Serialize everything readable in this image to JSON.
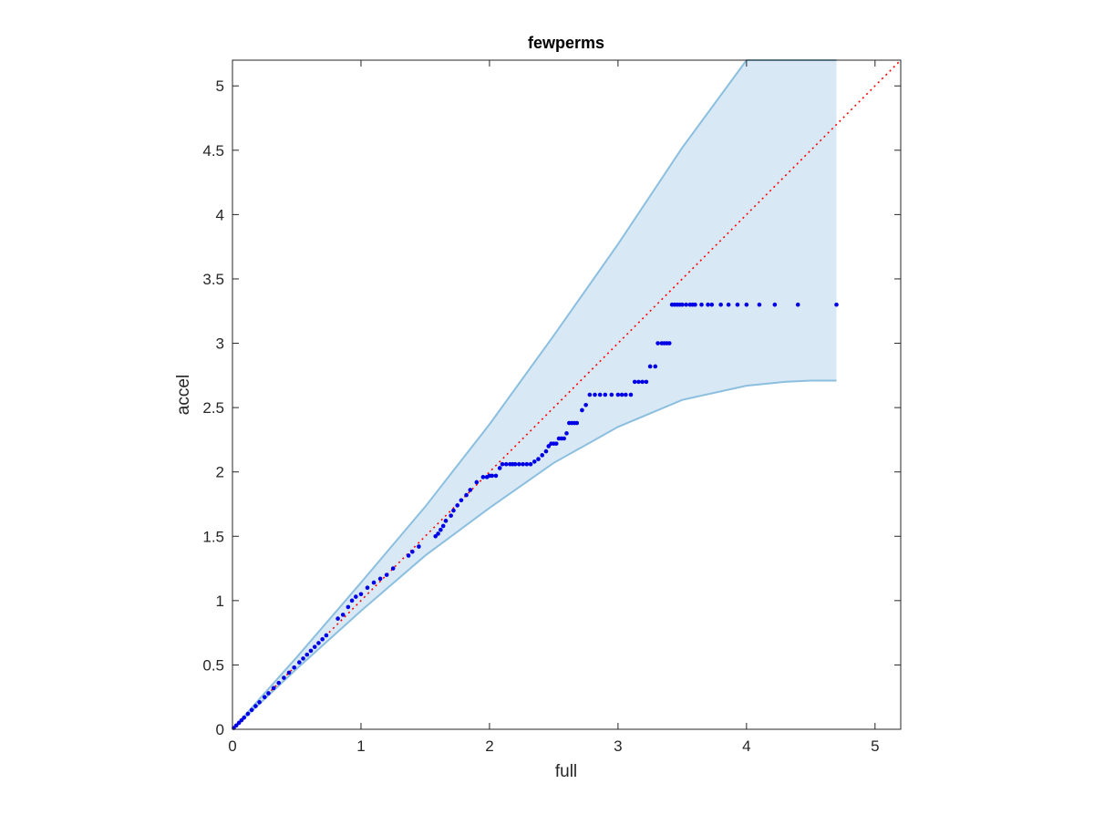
{
  "chart_data": {
    "type": "scatter",
    "title": "fewperms",
    "xlabel": "full",
    "ylabel": "accel",
    "xlim": [
      0,
      5.2
    ],
    "ylim": [
      0,
      5.2
    ],
    "xticks": [
      "0",
      "1",
      "2",
      "3",
      "4",
      "5"
    ],
    "yticks": [
      "0",
      "0.5",
      "1",
      "1.5",
      "2",
      "2.5",
      "3",
      "3.5",
      "4",
      "4.5",
      "5"
    ],
    "grid": false,
    "colors": {
      "points": "#0000e6",
      "reference_line": "#ff0000",
      "band_fill": "#d8e8f4",
      "band_edge": "#8cbfdf",
      "axes": "#262626"
    },
    "confidence_band": {
      "x": [
        0,
        0.5,
        1.0,
        1.5,
        2.0,
        2.5,
        3.0,
        3.5,
        4.0,
        4.3,
        4.5,
        4.7
      ],
      "upper": [
        0,
        0.56,
        1.14,
        1.73,
        2.37,
        3.06,
        3.77,
        4.52,
        5.2,
        5.2,
        5.2,
        5.2
      ],
      "lower": [
        0,
        0.47,
        0.92,
        1.35,
        1.72,
        2.07,
        2.35,
        2.56,
        2.67,
        2.7,
        2.71,
        2.71
      ]
    },
    "reference_line": {
      "style": "dotted",
      "x": [
        0,
        5.2
      ],
      "y": [
        0,
        5.2
      ]
    },
    "points": {
      "x": [
        0.01,
        0.03,
        0.05,
        0.07,
        0.09,
        0.12,
        0.15,
        0.18,
        0.21,
        0.25,
        0.28,
        0.32,
        0.36,
        0.4,
        0.44,
        0.48,
        0.52,
        0.55,
        0.58,
        0.61,
        0.64,
        0.67,
        0.7,
        0.73,
        0.82,
        0.86,
        0.9,
        0.93,
        0.96,
        1.0,
        1.05,
        1.1,
        1.15,
        1.2,
        1.25,
        1.37,
        1.4,
        1.45,
        1.58,
        1.6,
        1.62,
        1.64,
        1.66,
        1.7,
        1.72,
        1.75,
        1.78,
        1.82,
        1.85,
        1.9,
        1.95,
        1.98,
        2.0,
        2.02,
        2.05,
        2.08,
        2.1,
        2.13,
        2.16,
        2.18,
        2.2,
        2.23,
        2.26,
        2.29,
        2.32,
        2.35,
        2.38,
        2.41,
        2.44,
        2.46,
        2.48,
        2.5,
        2.52,
        2.54,
        2.56,
        2.58,
        2.6,
        2.62,
        2.64,
        2.66,
        2.68,
        2.72,
        2.75,
        2.78,
        2.82,
        2.86,
        2.9,
        2.95,
        3.0,
        3.03,
        3.06,
        3.1,
        3.13,
        3.16,
        3.19,
        3.22,
        3.25,
        3.29,
        3.31,
        3.34,
        3.36,
        3.38,
        3.4,
        3.42,
        3.44,
        3.46,
        3.48,
        3.5,
        3.53,
        3.56,
        3.58,
        3.6,
        3.65,
        3.7,
        3.73,
        3.8,
        3.86,
        3.93,
        4.0,
        4.1,
        4.22,
        4.4,
        4.7
      ],
      "y": [
        0.01,
        0.03,
        0.05,
        0.07,
        0.09,
        0.12,
        0.15,
        0.18,
        0.21,
        0.25,
        0.28,
        0.32,
        0.36,
        0.4,
        0.44,
        0.48,
        0.52,
        0.55,
        0.58,
        0.61,
        0.64,
        0.67,
        0.7,
        0.73,
        0.86,
        0.89,
        0.95,
        1.0,
        1.03,
        1.05,
        1.1,
        1.14,
        1.17,
        1.2,
        1.25,
        1.35,
        1.38,
        1.42,
        1.5,
        1.52,
        1.55,
        1.58,
        1.62,
        1.66,
        1.7,
        1.74,
        1.78,
        1.82,
        1.86,
        1.92,
        1.96,
        1.96,
        1.97,
        1.97,
        1.97,
        2.03,
        2.06,
        2.06,
        2.06,
        2.06,
        2.06,
        2.06,
        2.06,
        2.06,
        2.06,
        2.08,
        2.1,
        2.13,
        2.16,
        2.2,
        2.22,
        2.22,
        2.22,
        2.26,
        2.26,
        2.26,
        2.3,
        2.38,
        2.38,
        2.38,
        2.38,
        2.48,
        2.52,
        2.6,
        2.6,
        2.6,
        2.6,
        2.6,
        2.6,
        2.6,
        2.6,
        2.6,
        2.7,
        2.7,
        2.7,
        2.7,
        2.82,
        2.82,
        3.0,
        3.0,
        3.0,
        3.0,
        3.0,
        3.3,
        3.3,
        3.3,
        3.3,
        3.3,
        3.3,
        3.3,
        3.3,
        3.3,
        3.3,
        3.3,
        3.3,
        3.3,
        3.3,
        3.3,
        3.3,
        3.3,
        3.3,
        3.3,
        3.3
      ]
    }
  }
}
